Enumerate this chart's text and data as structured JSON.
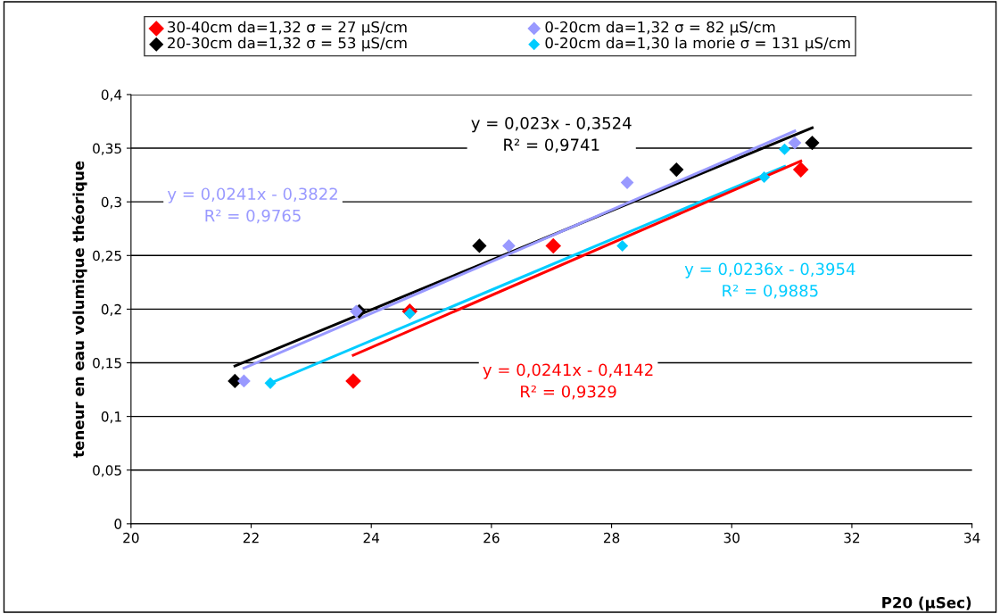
{
  "chart_data": {
    "type": "scatter",
    "xlabel": "P20 (µSec)",
    "ylabel": "teneur en eau volumique théorique",
    "xlim": [
      20,
      34
    ],
    "xticks": [
      20,
      22,
      24,
      26,
      28,
      30,
      32,
      34
    ],
    "ylim": [
      0,
      0.4
    ],
    "yticks": [
      0,
      {
        "value": 0.05,
        "label": "0,05"
      },
      {
        "value": 0.1,
        "label": "0,1"
      },
      {
        "value": 0.15,
        "label": "0,15"
      },
      {
        "value": 0.2,
        "label": "0,2"
      },
      {
        "value": 0.25,
        "label": "0,25"
      },
      {
        "value": 0.3,
        "label": "0,3"
      },
      {
        "value": 0.35,
        "label": "0,35"
      },
      {
        "value": 0.4,
        "label": "0,4"
      }
    ],
    "grid": "y",
    "legend": "top",
    "marker": "diamond",
    "series": [
      {
        "name": "30-40cm da=1,32 σ = 27 µS/cm",
        "color": "#ff0000",
        "x": [
          23.7,
          24.64,
          27.03,
          31.15
        ],
        "values": [
          0.133,
          0.198,
          0.259,
          0.33
        ]
      },
      {
        "name": "20-30cm da=1,32 σ = 53 µS/cm",
        "color": "#000000",
        "x": [
          21.73,
          23.8,
          25.8,
          29.08,
          31.34
        ],
        "values": [
          0.133,
          0.198,
          0.259,
          0.33,
          0.355
        ]
      },
      {
        "name": "0-20cm da=1,32 σ = 82 µS/cm",
        "color": "#9999ff",
        "x": [
          21.88,
          23.75,
          26.29,
          28.26,
          31.05
        ],
        "values": [
          0.133,
          0.198,
          0.259,
          0.318,
          0.355
        ]
      },
      {
        "name": "0-20cm da=1,30 la morie σ = 131 µS/cm",
        "color": "#00ccff",
        "x": [
          22.32,
          24.64,
          28.18,
          30.54,
          30.88
        ],
        "values": [
          0.131,
          0.196,
          0.259,
          0.323,
          0.349
        ]
      },
      {
        "type": "line",
        "marker": "none",
        "color": "#000000",
        "x": [
          21.73,
          31.34
        ],
        "values": [
          0.147,
          0.369
        ]
      },
      {
        "type": "line",
        "marker": "none",
        "color": "#9999ff",
        "x": [
          21.88,
          31.05
        ],
        "values": [
          0.145,
          0.366
        ]
      },
      {
        "type": "line",
        "marker": "none",
        "color": "#00ccff",
        "x": [
          22.32,
          30.88
        ],
        "values": [
          0.131,
          0.333
        ]
      },
      {
        "type": "line",
        "marker": "none",
        "color": "#ff0000",
        "x": [
          23.7,
          31.15
        ],
        "values": [
          0.157,
          0.338
        ]
      }
    ],
    "annotations": [
      "y = 0,023x - 0,3524\nR² = 0,9741",
      "y = 0,0241x - 0,3822\nR² = 0,9765",
      "y = 0,0236x - 0,3954\nR² = 0,9885",
      "y = 0,0241x - 0,4142\nR² = 0,9329"
    ]
  }
}
